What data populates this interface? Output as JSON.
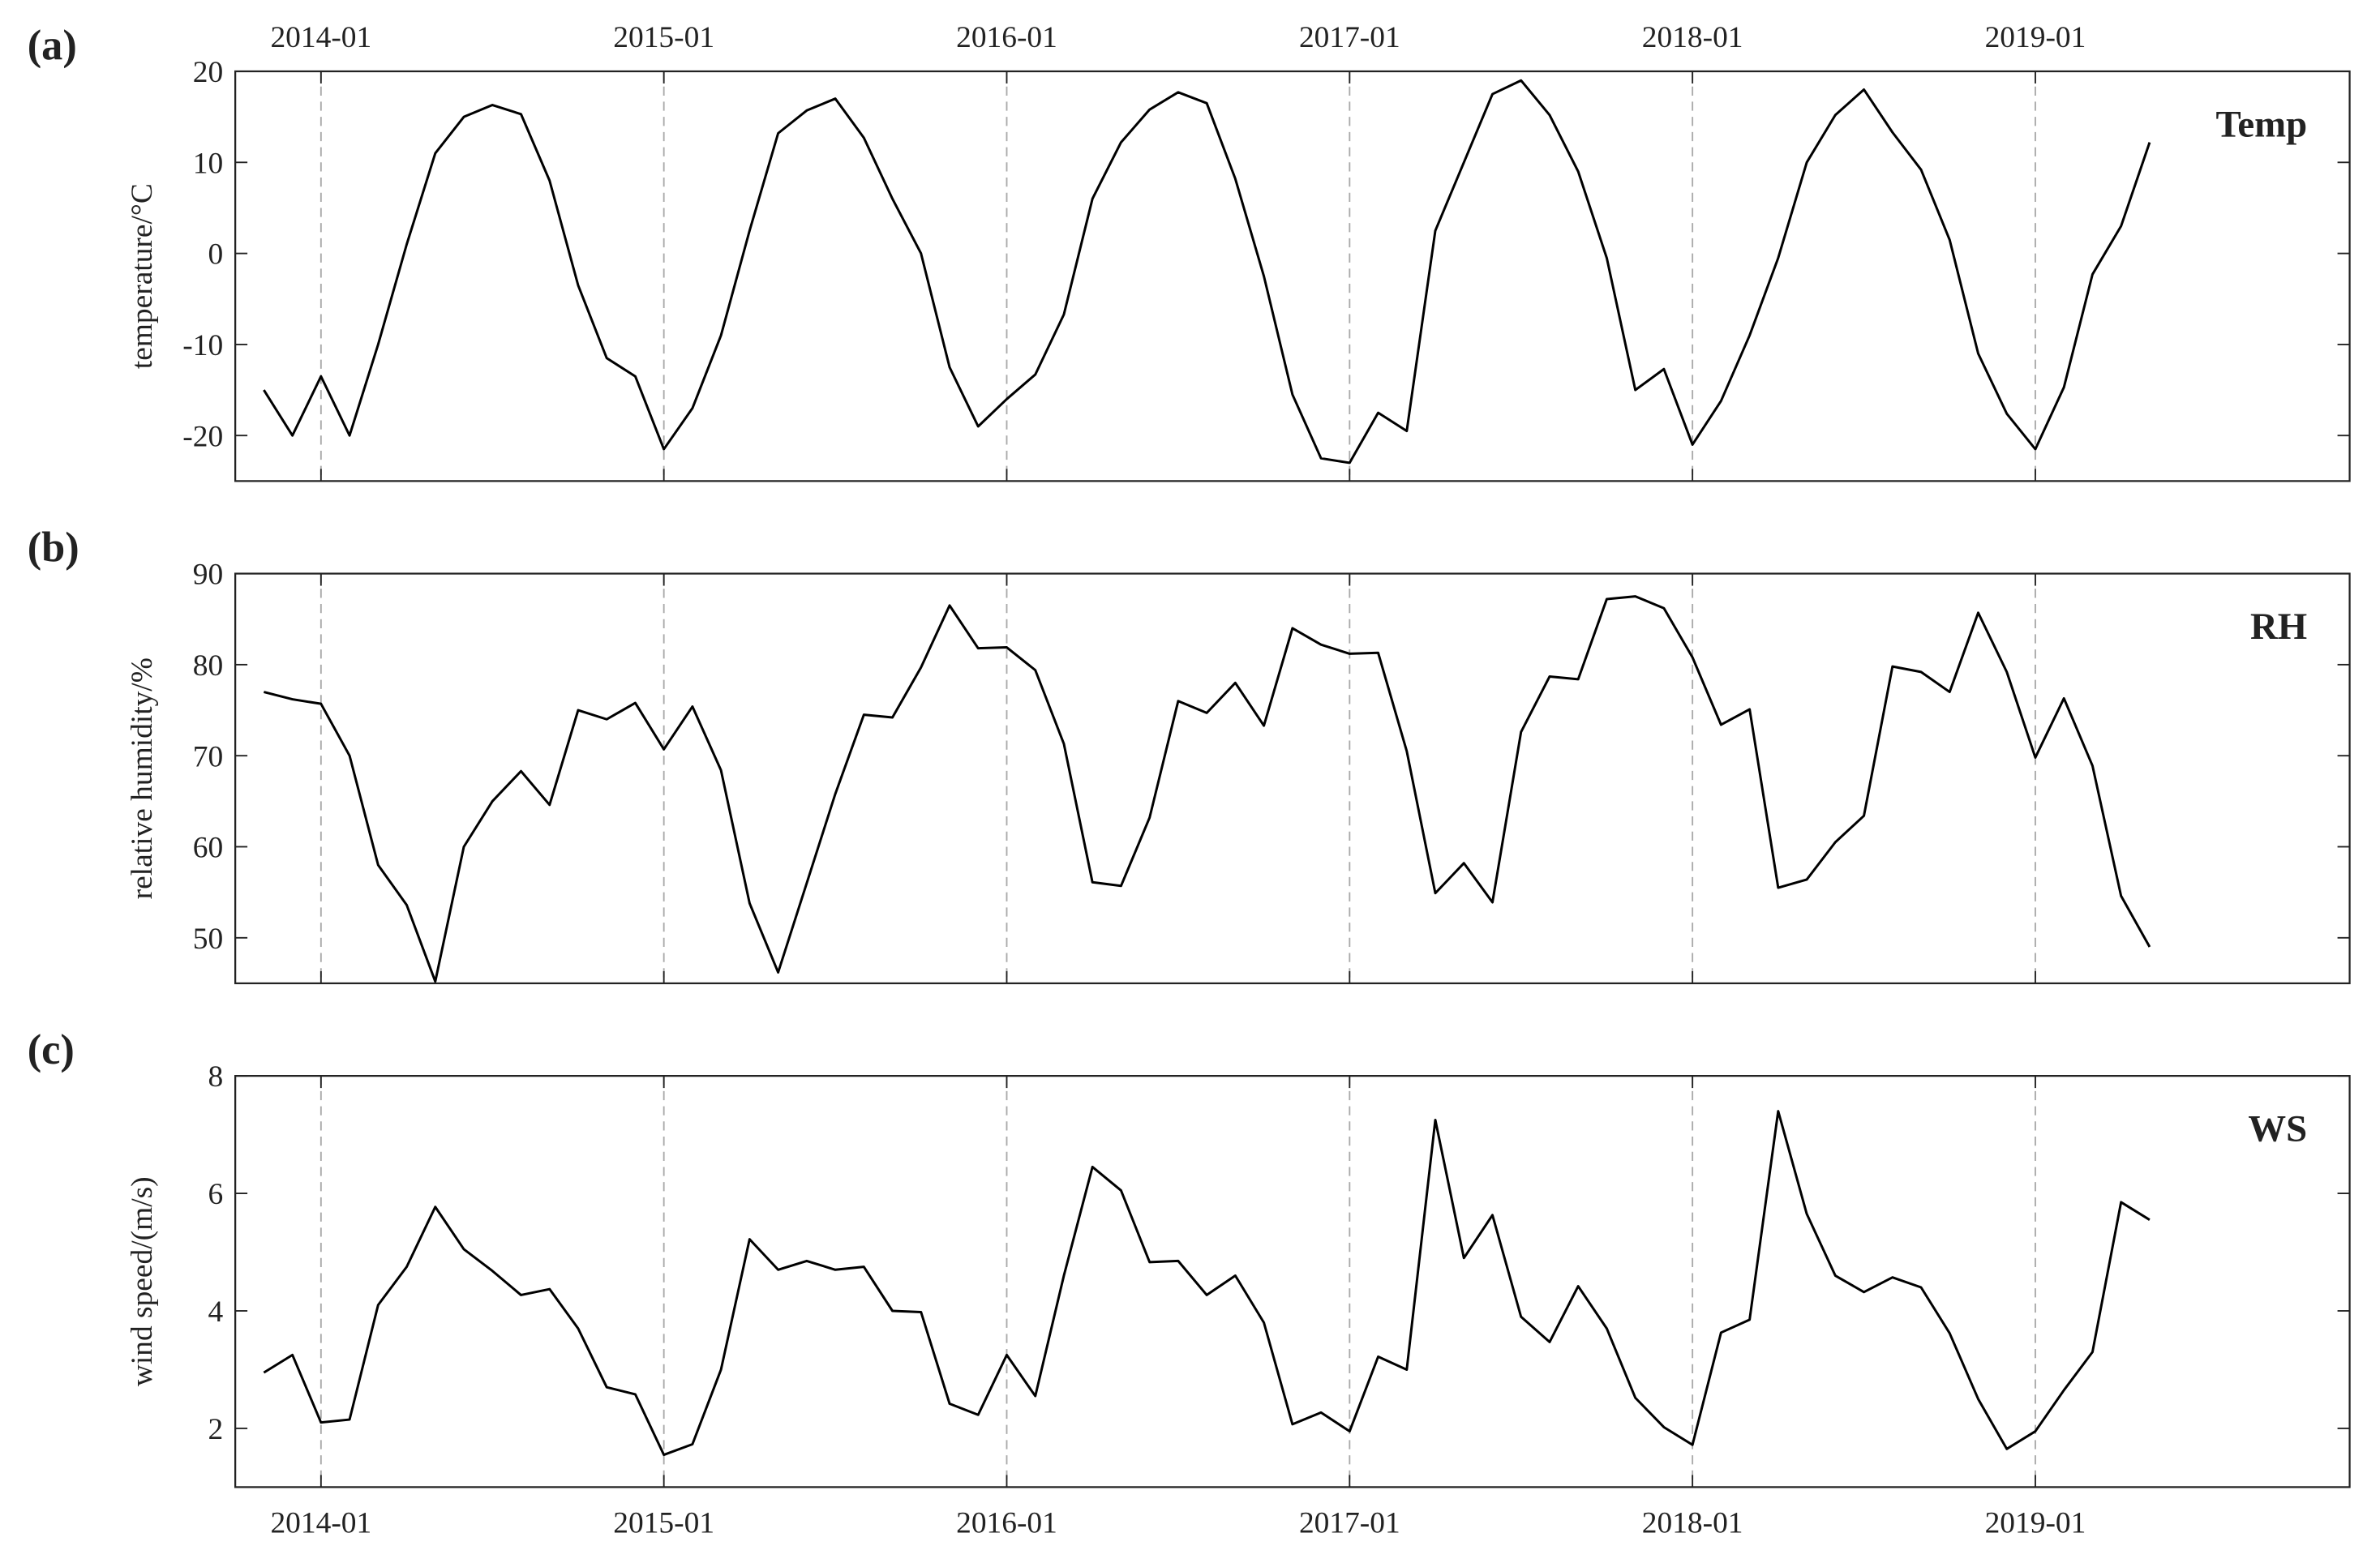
{
  "chart_data": [
    {
      "type": "line",
      "panel_label": "(a)",
      "annotation": "Temp",
      "ylabel": "temperature/°C",
      "x": [
        "2013-11",
        "2013-12",
        "2014-01",
        "2014-02",
        "2014-03",
        "2014-04",
        "2014-05",
        "2014-06",
        "2014-07",
        "2014-08",
        "2014-09",
        "2014-10",
        "2014-11",
        "2014-12",
        "2015-01",
        "2015-02",
        "2015-03",
        "2015-04",
        "2015-05",
        "2015-06",
        "2015-07",
        "2015-08",
        "2015-09",
        "2015-10",
        "2015-11",
        "2015-12",
        "2016-01",
        "2016-02",
        "2016-03",
        "2016-04",
        "2016-05",
        "2016-06",
        "2016-07",
        "2016-08",
        "2016-09",
        "2016-10",
        "2016-11",
        "2016-12",
        "2017-01",
        "2017-02",
        "2017-03",
        "2017-04",
        "2017-05",
        "2017-06",
        "2017-07",
        "2017-08",
        "2017-09",
        "2017-10",
        "2017-11",
        "2017-12",
        "2018-01",
        "2018-02",
        "2018-03",
        "2018-04",
        "2018-05",
        "2018-06",
        "2018-07",
        "2018-08",
        "2018-09",
        "2018-10",
        "2018-11",
        "2018-12",
        "2019-01",
        "2019-02",
        "2019-03",
        "2019-04",
        "2019-05"
      ],
      "values": [
        -15,
        -20,
        -13.5,
        -20,
        -10,
        1,
        11,
        15,
        16.3,
        15.3,
        8,
        -3.5,
        -11.5,
        -13.5,
        -21.5,
        -17,
        -9,
        2.5,
        13.2,
        15.7,
        17,
        12.7,
        6,
        0,
        -12.5,
        -19,
        -16,
        -13.3,
        -6.7,
        6,
        12.2,
        15.8,
        17.7,
        16.5,
        8.2,
        -2.5,
        -15.5,
        -22.5,
        -23,
        -17.5,
        -19.5,
        2.5,
        10,
        17.5,
        19,
        15.2,
        9,
        -0.5,
        -15,
        -12.7,
        -21,
        -16.2,
        -9,
        -0.5,
        10,
        15.2,
        18,
        13.3,
        9.2,
        1.5,
        -11,
        -17.6,
        -21.5,
        -14.7,
        -2.3,
        3,
        12.2
      ],
      "color": "#000000",
      "xlim": [
        "2013-10",
        "2019-12"
      ],
      "xticks": [
        "2014-01",
        "2015-01",
        "2016-01",
        "2017-01",
        "2018-01",
        "2019-01"
      ],
      "xtick_labels": "top",
      "ylim": [
        -25,
        20
      ],
      "yticks": [
        -20,
        -10,
        0,
        10,
        20
      ],
      "grid": "x"
    },
    {
      "type": "line",
      "panel_label": "(b)",
      "annotation": "RH",
      "ylabel": "relative humidity/%",
      "x": [
        "2013-11",
        "2013-12",
        "2014-01",
        "2014-02",
        "2014-03",
        "2014-04",
        "2014-05",
        "2014-06",
        "2014-07",
        "2014-08",
        "2014-09",
        "2014-10",
        "2014-11",
        "2014-12",
        "2015-01",
        "2015-02",
        "2015-03",
        "2015-04",
        "2015-05",
        "2015-06",
        "2015-07",
        "2015-08",
        "2015-09",
        "2015-10",
        "2015-11",
        "2015-12",
        "2016-01",
        "2016-02",
        "2016-03",
        "2016-04",
        "2016-05",
        "2016-06",
        "2016-07",
        "2016-08",
        "2016-09",
        "2016-10",
        "2016-11",
        "2016-12",
        "2017-01",
        "2017-02",
        "2017-03",
        "2017-04",
        "2017-05",
        "2017-06",
        "2017-07",
        "2017-08",
        "2017-09",
        "2017-10",
        "2017-11",
        "2017-12",
        "2018-01",
        "2018-02",
        "2018-03",
        "2018-04",
        "2018-05",
        "2018-06",
        "2018-07",
        "2018-08",
        "2018-09",
        "2018-10",
        "2018-11",
        "2018-12",
        "2019-01",
        "2019-02",
        "2019-03",
        "2019-04",
        "2019-05"
      ],
      "values": [
        77,
        76.2,
        75.7,
        70,
        58,
        53.6,
        45.2,
        60,
        65,
        68.3,
        64.6,
        75,
        74,
        75.8,
        70.7,
        75.4,
        68.4,
        53.8,
        46.2,
        56,
        65.8,
        74.5,
        74.2,
        79.7,
        86.5,
        81.8,
        81.9,
        79.4,
        71.3,
        56.1,
        55.7,
        63.2,
        76,
        74.7,
        78,
        73.3,
        84,
        82.2,
        81.2,
        81.3,
        70.5,
        54.9,
        58.2,
        53.9,
        72.6,
        78.7,
        78.4,
        87.2,
        87.5,
        86.2,
        80.8,
        73.4,
        75.1,
        55.5,
        56.4,
        60.5,
        63.4,
        79.8,
        79.2,
        77,
        85.7,
        79.2,
        69.8,
        76.3,
        68.9,
        54.6,
        49
      ],
      "color": "#000000",
      "xlim": [
        "2013-10",
        "2019-12"
      ],
      "xticks": [
        "2014-01",
        "2015-01",
        "2016-01",
        "2017-01",
        "2018-01",
        "2019-01"
      ],
      "xtick_labels": false,
      "ylim": [
        45,
        90
      ],
      "yticks": [
        50,
        60,
        70,
        80,
        90
      ],
      "grid": "x"
    },
    {
      "type": "line",
      "panel_label": "(c)",
      "annotation": "WS",
      "ylabel": "wind speed/(m/s)",
      "x": [
        "2013-11",
        "2013-12",
        "2014-01",
        "2014-02",
        "2014-03",
        "2014-04",
        "2014-05",
        "2014-06",
        "2014-07",
        "2014-08",
        "2014-09",
        "2014-10",
        "2014-11",
        "2014-12",
        "2015-01",
        "2015-02",
        "2015-03",
        "2015-04",
        "2015-05",
        "2015-06",
        "2015-07",
        "2015-08",
        "2015-09",
        "2015-10",
        "2015-11",
        "2015-12",
        "2016-01",
        "2016-02",
        "2016-03",
        "2016-04",
        "2016-05",
        "2016-06",
        "2016-07",
        "2016-08",
        "2016-09",
        "2016-10",
        "2016-11",
        "2016-12",
        "2017-01",
        "2017-02",
        "2017-03",
        "2017-04",
        "2017-05",
        "2017-06",
        "2017-07",
        "2017-08",
        "2017-09",
        "2017-10",
        "2017-11",
        "2017-12",
        "2018-01",
        "2018-02",
        "2018-03",
        "2018-04",
        "2018-05",
        "2018-06",
        "2018-07",
        "2018-08",
        "2018-09",
        "2018-10",
        "2018-11",
        "2018-12",
        "2019-01",
        "2019-02",
        "2019-03",
        "2019-04",
        "2019-05"
      ],
      "values": [
        2.95,
        3.25,
        2.1,
        2.15,
        4.1,
        4.75,
        5.77,
        5.05,
        4.68,
        4.27,
        4.37,
        3.7,
        2.7,
        2.58,
        1.55,
        1.73,
        3,
        5.22,
        4.7,
        4.85,
        4.7,
        4.75,
        4,
        3.98,
        2.42,
        2.23,
        3.25,
        2.55,
        4.6,
        6.45,
        6.05,
        4.83,
        4.85,
        4.27,
        4.6,
        3.8,
        2.07,
        2.27,
        1.95,
        3.22,
        3,
        7.25,
        4.9,
        5.63,
        3.9,
        3.47,
        4.42,
        3.7,
        2.52,
        2.02,
        1.72,
        3.63,
        3.85,
        7.4,
        5.65,
        4.6,
        4.32,
        4.57,
        4.4,
        3.62,
        2.5,
        1.65,
        1.95,
        2.65,
        3.3,
        5.85,
        5.55
      ],
      "color": "#000000",
      "xlim": [
        "2013-10",
        "2019-12"
      ],
      "xticks": [
        "2014-01",
        "2015-01",
        "2016-01",
        "2017-01",
        "2018-01",
        "2019-01"
      ],
      "xtick_labels": "bottom",
      "ylim": [
        1,
        8
      ],
      "yticks": [
        2,
        4,
        6,
        8
      ],
      "grid": "x"
    }
  ]
}
